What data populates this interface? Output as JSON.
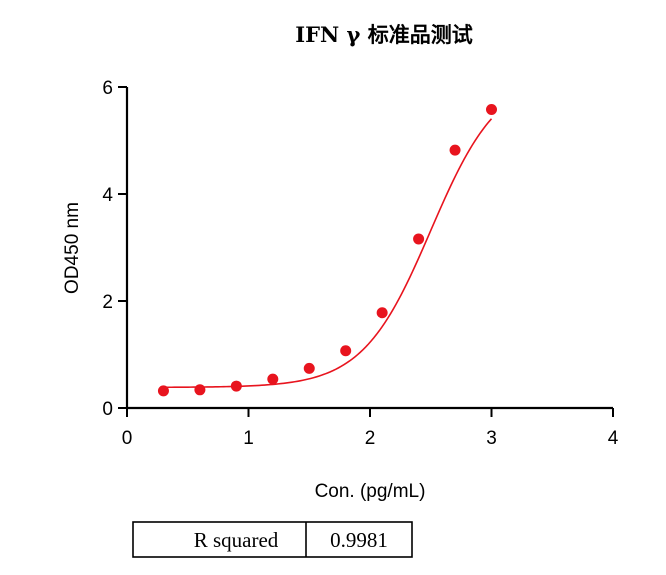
{
  "chart_data": {
    "type": "scatter",
    "title": "IFN γ 标准品测试",
    "xlabel": "Con. (pg/mL)",
    "ylabel": "OD450 nm",
    "xlim": [
      0,
      4
    ],
    "ylim": [
      0,
      6
    ],
    "x_ticks": [
      "0",
      "1",
      "2",
      "3",
      "4"
    ],
    "y_ticks": [
      "0",
      "2",
      "4",
      "6"
    ],
    "grid": false,
    "point_color": "#e8141e",
    "curve_color": "#e8141e",
    "points": [
      {
        "x": 0.3,
        "y": 0.32
      },
      {
        "x": 0.6,
        "y": 0.34
      },
      {
        "x": 0.9,
        "y": 0.41
      },
      {
        "x": 1.2,
        "y": 0.54
      },
      {
        "x": 1.5,
        "y": 0.74
      },
      {
        "x": 1.8,
        "y": 1.07
      },
      {
        "x": 2.1,
        "y": 1.78
      },
      {
        "x": 2.4,
        "y": 3.16
      },
      {
        "x": 2.7,
        "y": 4.82
      },
      {
        "x": 3.0,
        "y": 5.58
      }
    ],
    "fit_curve": {
      "bottom": 0.385,
      "top": 6.25,
      "log_ec50": 2.5,
      "hill_slope": 1.55
    }
  },
  "stats_table": {
    "label": "R squared",
    "value": "0.9981"
  }
}
